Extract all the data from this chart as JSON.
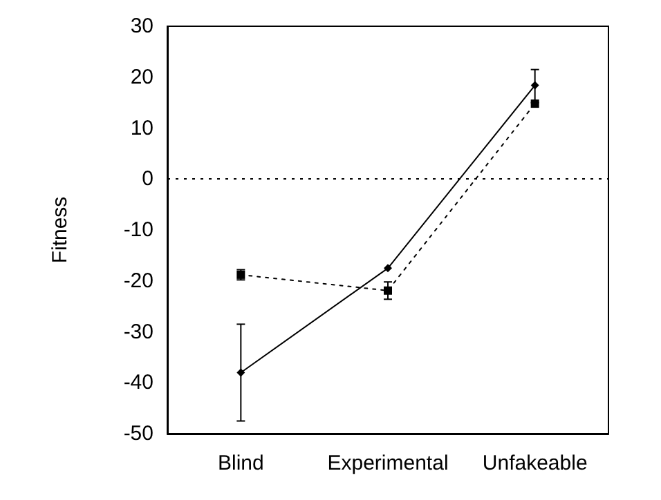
{
  "chart_data": {
    "type": "line",
    "ylabel": "Fitness",
    "categories": [
      "Blind",
      "Experimental",
      "Unfakeable"
    ],
    "series": [
      {
        "color": "#000000",
        "values": [
          -38,
          -17.5,
          18.4
        ],
        "errors": [
          [
            -47.5,
            -28.5
          ],
          null,
          [
            15,
            21.5
          ]
        ],
        "marker": "diamond",
        "line_style": "solid"
      },
      {
        "color": "#000000",
        "values": [
          -18.8,
          -21.9,
          14.8
        ],
        "errors": [
          [
            -19.8,
            -17.8
          ],
          [
            -23.6,
            -20.2
          ],
          null
        ],
        "marker": "square",
        "line_style": "dotted"
      }
    ],
    "ylim": [
      -50,
      30
    ],
    "yticks": [
      -50,
      -40,
      -30,
      -20,
      -10,
      0,
      10,
      20,
      30
    ],
    "ref_lines": [
      {
        "axis": "y",
        "value": 0,
        "line_style": "dotted",
        "color": "#000000"
      }
    ],
    "grid": false
  }
}
